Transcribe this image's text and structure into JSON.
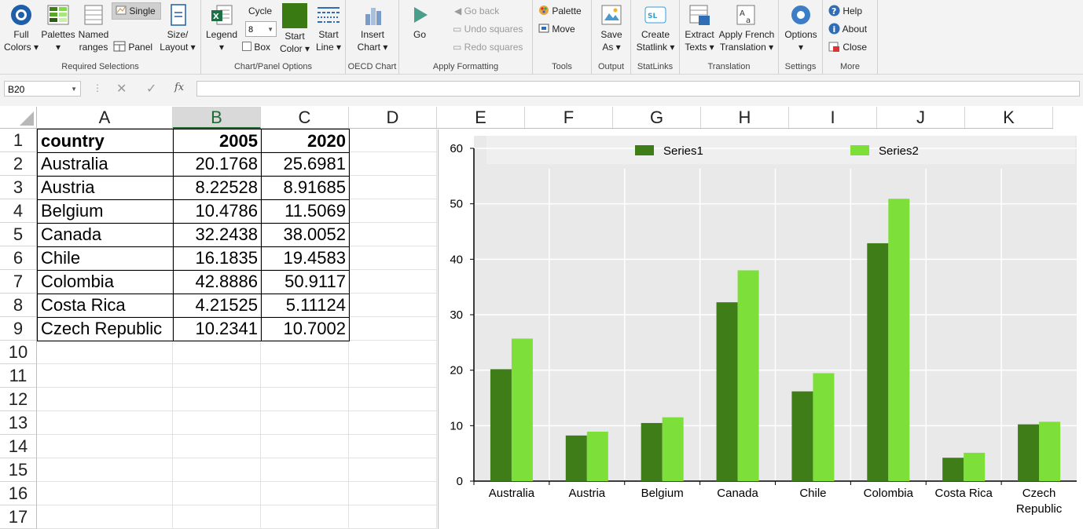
{
  "ribbon": {
    "groups": [
      {
        "label": "Required Selections"
      },
      {
        "label": "Chart/Panel Options"
      },
      {
        "label": "OECD Chart"
      },
      {
        "label": "Apply Formatting"
      },
      {
        "label": "Tools"
      },
      {
        "label": "Output"
      },
      {
        "label": "StatLinks"
      },
      {
        "label": "Translation"
      },
      {
        "label": "Settings"
      },
      {
        "label": "More"
      }
    ],
    "full_colors": {
      "line1": "Full",
      "line2": "Colors ▾"
    },
    "palettes": {
      "line1": "Palettes",
      "line2": "▾"
    },
    "named_ranges": {
      "line1": "Named",
      "line2": "ranges"
    },
    "single": "Single",
    "panel": "Panel",
    "size_layout": {
      "line1": "Size/",
      "line2": "Layout ▾"
    },
    "legend": {
      "line1": "Legend",
      "line2": "▾"
    },
    "cycle": {
      "label": "Cycle",
      "value": "8"
    },
    "box": "Box",
    "start_color": {
      "line1": "Start",
      "line2": "Color ▾"
    },
    "start_line": {
      "line1": "Start",
      "line2": "Line ▾"
    },
    "insert_chart": {
      "line1": "Insert",
      "line2": "Chart ▾"
    },
    "go": "Go",
    "go_back": "Go back",
    "undo_squares": "Undo squares",
    "redo_squares": "Redo squares",
    "palette": "Palette",
    "move": "Move",
    "save_as": {
      "line1": "Save",
      "line2": "As ▾"
    },
    "create_statlink": {
      "line1": "Create",
      "line2": "Statlink ▾"
    },
    "extract_texts": {
      "line1": "Extract",
      "line2": "Texts ▾"
    },
    "apply_french": {
      "line1": "Apply French",
      "line2": "Translation ▾"
    },
    "options": {
      "line1": "Options",
      "line2": "▾"
    },
    "help": "Help",
    "about": "About",
    "close": "Close",
    "colors": {
      "dark_green": "#3a7a12",
      "accent_blue": "#2f6db5"
    }
  },
  "formula_bar": {
    "name_box": "B20",
    "fx": "fx",
    "value": ""
  },
  "sheet": {
    "columns": [
      "A",
      "B",
      "C",
      "D",
      "E",
      "F",
      "G",
      "H",
      "I",
      "J",
      "K"
    ],
    "rows": [
      "1",
      "2",
      "3",
      "4",
      "5",
      "6",
      "7",
      "8",
      "9",
      "10",
      "11",
      "12",
      "13",
      "14",
      "15",
      "16",
      "17"
    ],
    "header": [
      "country",
      "2005",
      "2020"
    ],
    "data": [
      [
        "Australia",
        "20.1768",
        "25.6981"
      ],
      [
        "Austria",
        "8.22528",
        "8.91685"
      ],
      [
        "Belgium",
        "10.4786",
        "11.5069"
      ],
      [
        "Canada",
        "32.2438",
        "38.0052"
      ],
      [
        "Chile",
        "16.1835",
        "19.4583"
      ],
      [
        "Colombia",
        "42.8886",
        "50.9117"
      ],
      [
        "Costa Rica",
        "4.21525",
        "5.11124"
      ],
      [
        "Czech Republic",
        "10.2341",
        "10.7002"
      ]
    ]
  },
  "chart_data": {
    "type": "bar",
    "categories": [
      "Australia",
      "Austria",
      "Belgium",
      "Canada",
      "Chile",
      "Colombia",
      "Costa Rica",
      "Czech Republic"
    ],
    "series": [
      {
        "name": "Series1",
        "values": [
          20.1768,
          8.22528,
          10.4786,
          32.2438,
          16.1835,
          42.8886,
          4.21525,
          10.2341
        ],
        "color": "#3f7d18"
      },
      {
        "name": "Series2",
        "values": [
          25.6981,
          8.91685,
          11.5069,
          38.0052,
          19.4583,
          50.9117,
          5.11124,
          10.7002
        ],
        "color": "#7ddf3a"
      }
    ],
    "yticks": [
      "0",
      "10",
      "20",
      "30",
      "40",
      "50",
      "60"
    ],
    "ylim": [
      0,
      60
    ],
    "grid": true,
    "legend": "top",
    "plot_bg": "#e9e9e9"
  }
}
